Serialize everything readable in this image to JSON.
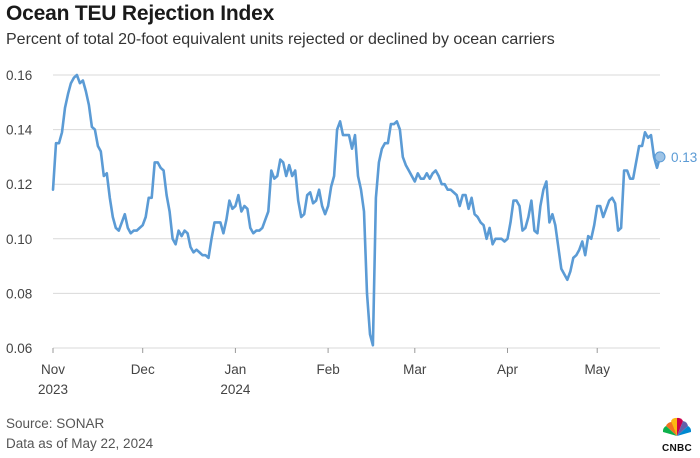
{
  "header": {
    "title": "Ocean TEU Rejection Index",
    "subtitle": "Percent of total 20-foot equivalent units rejected or declined by ocean carriers"
  },
  "footer": {
    "source": "Source: SONAR",
    "data_as_of": "Data as of May 22, 2024",
    "logo_text": "CNBC"
  },
  "chart_data": {
    "type": "line",
    "title": "Ocean TEU Rejection Index",
    "xlabel": "",
    "ylabel": "",
    "ylim": [
      0.06,
      0.16
    ],
    "yticks": [
      0.06,
      0.08,
      0.1,
      0.12,
      0.14,
      0.16
    ],
    "ytick_labels": [
      "0.06",
      "0.08",
      "0.10",
      "0.12",
      "0.14",
      "0.16"
    ],
    "xlim": [
      0,
      203
    ],
    "xticks": [
      {
        "day": 0,
        "label": "Nov",
        "sublabel": "2023"
      },
      {
        "day": 30,
        "label": "Dec",
        "sublabel": ""
      },
      {
        "day": 61,
        "label": "Jan",
        "sublabel": "2024"
      },
      {
        "day": 92,
        "label": "Feb",
        "sublabel": ""
      },
      {
        "day": 121,
        "label": "Mar",
        "sublabel": ""
      },
      {
        "day": 152,
        "label": "Apr",
        "sublabel": ""
      },
      {
        "day": 182,
        "label": "May",
        "sublabel": ""
      }
    ],
    "grid": true,
    "line_color": "#5b9bd5",
    "end_label": "0.13",
    "series": [
      {
        "name": "Ocean TEU Rejection Index",
        "x": [
          0,
          1,
          2,
          3,
          4,
          5,
          6,
          7,
          8,
          9,
          10,
          11,
          12,
          13,
          14,
          15,
          16,
          17,
          18,
          19,
          20,
          21,
          22,
          23,
          24,
          25,
          26,
          27,
          28,
          29,
          30,
          31,
          32,
          33,
          34,
          35,
          36,
          37,
          38,
          39,
          40,
          41,
          42,
          43,
          44,
          45,
          46,
          47,
          48,
          49,
          50,
          51,
          52,
          53,
          54,
          55,
          56,
          57,
          58,
          59,
          60,
          61,
          62,
          63,
          64,
          65,
          66,
          67,
          68,
          69,
          70,
          71,
          72,
          73,
          74,
          75,
          76,
          77,
          78,
          79,
          80,
          81,
          82,
          83,
          84,
          85,
          86,
          87,
          88,
          89,
          90,
          91,
          92,
          93,
          94,
          95,
          96,
          97,
          98,
          99,
          100,
          101,
          102,
          103,
          104,
          105,
          106,
          107,
          108,
          109,
          110,
          111,
          112,
          113,
          114,
          115,
          116,
          117,
          118,
          119,
          120,
          121,
          122,
          123,
          124,
          125,
          126,
          127,
          128,
          129,
          130,
          131,
          132,
          133,
          134,
          135,
          136,
          137,
          138,
          139,
          140,
          141,
          142,
          143,
          144,
          145,
          146,
          147,
          148,
          149,
          150,
          151,
          152,
          153,
          154,
          155,
          156,
          157,
          158,
          159,
          160,
          161,
          162,
          163,
          164,
          165,
          166,
          167,
          168,
          169,
          170,
          171,
          172,
          173,
          174,
          175,
          176,
          177,
          178,
          179,
          180,
          181,
          182,
          183,
          184,
          185,
          186,
          187,
          188,
          189,
          190,
          191,
          192,
          193,
          194,
          195,
          196,
          197,
          198,
          199,
          200,
          201,
          202,
          203
        ],
        "values": [
          0.118,
          0.135,
          0.135,
          0.139,
          0.148,
          0.153,
          0.157,
          0.159,
          0.16,
          0.157,
          0.158,
          0.154,
          0.149,
          0.141,
          0.14,
          0.134,
          0.132,
          0.123,
          0.124,
          0.115,
          0.108,
          0.104,
          0.103,
          0.106,
          0.109,
          0.104,
          0.102,
          0.103,
          0.103,
          0.104,
          0.105,
          0.108,
          0.115,
          0.115,
          0.128,
          0.128,
          0.126,
          0.125,
          0.116,
          0.11,
          0.1,
          0.098,
          0.103,
          0.101,
          0.103,
          0.102,
          0.097,
          0.095,
          0.096,
          0.095,
          0.094,
          0.094,
          0.093,
          0.1,
          0.106,
          0.106,
          0.106,
          0.102,
          0.107,
          0.114,
          0.111,
          0.112,
          0.116,
          0.11,
          0.112,
          0.111,
          0.104,
          0.102,
          0.103,
          0.103,
          0.104,
          0.107,
          0.11,
          0.125,
          0.122,
          0.123,
          0.129,
          0.128,
          0.123,
          0.127,
          0.123,
          0.125,
          0.114,
          0.108,
          0.109,
          0.116,
          0.117,
          0.113,
          0.114,
          0.118,
          0.112,
          0.109,
          0.112,
          0.119,
          0.123,
          0.14,
          0.143,
          0.138,
          0.138,
          0.138,
          0.133,
          0.138,
          0.123,
          0.118,
          0.11,
          0.08,
          0.065,
          0.061,
          0.115,
          0.128,
          0.133,
          0.135,
          0.135,
          0.142,
          0.142,
          0.143,
          0.14,
          0.13,
          0.127,
          0.125,
          0.123,
          0.121,
          0.124,
          0.122,
          0.122,
          0.124,
          0.122,
          0.124,
          0.125,
          0.123,
          0.12,
          0.12,
          0.118,
          0.118,
          0.117,
          0.116,
          0.112,
          0.116,
          0.116,
          0.111,
          0.115,
          0.109,
          0.108,
          0.106,
          0.105,
          0.1,
          0.104,
          0.098,
          0.1,
          0.1,
          0.1,
          0.099,
          0.1,
          0.106,
          0.114,
          0.114,
          0.112,
          0.103,
          0.104,
          0.108,
          0.114,
          0.103,
          0.102,
          0.112,
          0.118,
          0.121,
          0.106,
          0.109,
          0.105,
          0.097,
          0.089,
          0.087,
          0.085,
          0.088,
          0.093,
          0.094,
          0.096,
          0.099,
          0.094,
          0.101,
          0.1,
          0.105,
          0.112,
          0.112,
          0.108,
          0.111,
          0.114,
          0.115,
          0.113,
          0.103,
          0.104,
          0.125,
          0.125,
          0.122,
          0.122,
          0.128,
          0.134,
          0.134,
          0.139,
          0.137,
          0.138,
          0.13,
          0.126,
          0.13
        ]
      }
    ]
  }
}
